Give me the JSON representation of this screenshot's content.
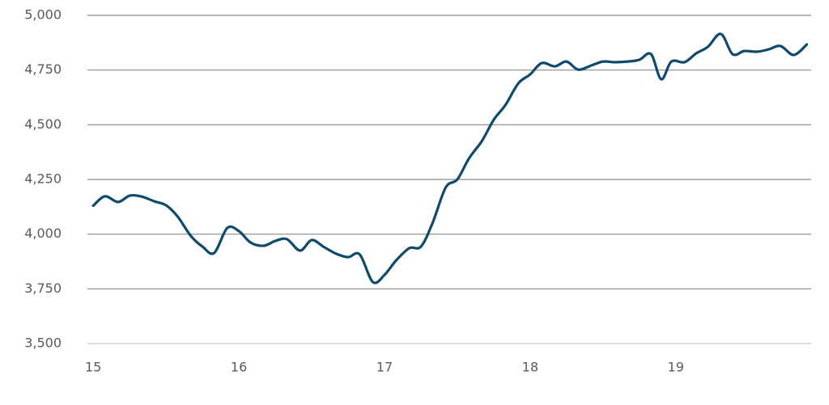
{
  "chart_data": {
    "type": "line",
    "x": [
      15.0,
      15.08,
      15.17,
      15.25,
      15.33,
      15.42,
      15.5,
      15.58,
      15.67,
      15.75,
      15.83,
      15.92,
      16.0,
      16.08,
      16.17,
      16.25,
      16.33,
      16.42,
      16.5,
      16.58,
      16.67,
      16.75,
      16.83,
      16.92,
      17.0,
      17.08,
      17.17,
      17.25,
      17.33,
      17.42,
      17.5,
      17.58,
      17.67,
      17.75,
      17.83,
      17.92,
      18.0,
      18.08,
      18.17,
      18.25,
      18.33,
      18.42,
      18.5,
      18.58,
      18.67,
      18.75,
      18.83,
      18.9,
      18.97,
      19.06,
      19.14,
      19.22,
      19.31,
      19.39,
      19.47,
      19.56,
      19.64,
      19.72,
      19.81,
      19.9
    ],
    "series": [
      {
        "color": "#0e4a6b",
        "values": [
          4130,
          4173,
          4147,
          4176,
          4172,
          4150,
          4132,
          4080,
          3992,
          3943,
          3914,
          4028,
          4014,
          3962,
          3947,
          3969,
          3977,
          3925,
          3973,
          3943,
          3910,
          3895,
          3907,
          3781,
          3814,
          3880,
          3936,
          3943,
          4051,
          4213,
          4250,
          4346,
          4427,
          4523,
          4590,
          4690,
          4730,
          4782,
          4767,
          4789,
          4752,
          4771,
          4789,
          4786,
          4789,
          4797,
          4823,
          4708,
          4789,
          4786,
          4826,
          4856,
          4915,
          4823,
          4837,
          4834,
          4845,
          4860,
          4819,
          4867
        ]
      }
    ],
    "xlim": [
      14.96,
      19.93
    ],
    "xticks": [
      15,
      16,
      17,
      18,
      19
    ],
    "ylim": [
      3500,
      5000
    ],
    "yticks": [
      {
        "value": 3500,
        "label": "3,500"
      },
      {
        "value": 3750,
        "label": "3,750"
      },
      {
        "value": 4000,
        "label": "4,000"
      },
      {
        "value": 4250,
        "label": "4,250"
      },
      {
        "value": 4500,
        "label": "4,500"
      },
      {
        "value": 4750,
        "label": "4,750"
      },
      {
        "value": 5000,
        "label": "5,000"
      }
    ],
    "grid": true
  }
}
